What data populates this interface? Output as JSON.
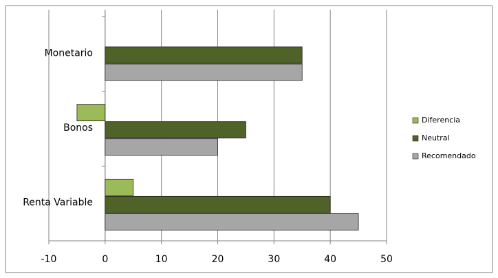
{
  "chart_data": {
    "type": "hbar",
    "categories": [
      "Monetario",
      "Bonos",
      "Renta Variable"
    ],
    "series": [
      {
        "name": "Diferencia",
        "color": "#9bbb59",
        "values": [
          0,
          -5,
          5
        ]
      },
      {
        "name": "Neutral",
        "color": "#4f6228",
        "values": [
          35,
          25,
          40
        ]
      },
      {
        "name": "Recomendado",
        "color": "#a6a6a6",
        "values": [
          35,
          20,
          45
        ]
      }
    ],
    "xlim": [
      -10,
      50
    ],
    "xticks": [
      -10,
      0,
      10,
      20,
      30,
      40,
      50
    ],
    "grid": true,
    "legend": "right"
  }
}
